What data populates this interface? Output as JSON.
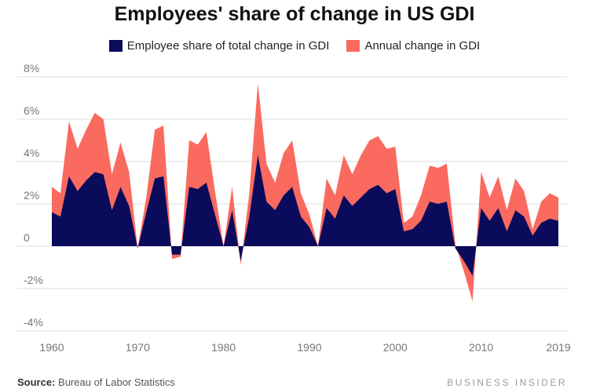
{
  "header": {
    "title": "Employees' share of change in US GDI"
  },
  "footer": {
    "source_label": "Source:",
    "source_text": "Bureau of Labor Statistics",
    "brand": "BUSINESS INSIDER"
  },
  "colors": {
    "employee_share": "#0b0b5c",
    "annual_change": "#fb6a5f",
    "grid": "#dddddd",
    "tick": "#777777"
  },
  "chart_data": {
    "type": "area",
    "title": "Employees' share of change in US GDI",
    "xlabel": "",
    "ylabel": "",
    "legend_position": "top",
    "grid": true,
    "stacked": "overlay",
    "x_ticks": [
      "1960",
      "1970",
      "1980",
      "1990",
      "2000",
      "2010",
      "2019"
    ],
    "y_ticks": [
      "8%",
      "6%",
      "4%",
      "2%",
      "0",
      "-2%",
      "-4%"
    ],
    "xlim": [
      1960,
      2019
    ],
    "ylim": [
      -4,
      8
    ],
    "x": [
      1960,
      1961,
      1962,
      1963,
      1964,
      1965,
      1966,
      1967,
      1968,
      1969,
      1970,
      1971,
      1972,
      1973,
      1974,
      1975,
      1976,
      1977,
      1978,
      1979,
      1980,
      1981,
      1982,
      1983,
      1984,
      1985,
      1986,
      1987,
      1988,
      1989,
      1990,
      1991,
      1992,
      1993,
      1994,
      1995,
      1996,
      1997,
      1998,
      1999,
      2000,
      2001,
      2002,
      2003,
      2004,
      2005,
      2006,
      2007,
      2008,
      2009,
      2010,
      2011,
      2012,
      2013,
      2014,
      2015,
      2016,
      2017,
      2018,
      2019
    ],
    "series": [
      {
        "name": "Employee share of total change in GDI",
        "values": [
          1.6,
          1.4,
          3.3,
          2.6,
          3.1,
          3.5,
          3.4,
          1.7,
          2.8,
          1.9,
          -0.1,
          1.6,
          3.2,
          3.3,
          -0.4,
          -0.4,
          2.8,
          2.7,
          3.0,
          1.5,
          0.0,
          1.7,
          -0.7,
          1.4,
          4.3,
          2.1,
          1.7,
          2.4,
          2.8,
          1.4,
          0.9,
          0.0,
          1.8,
          1.3,
          2.4,
          1.9,
          2.3,
          2.7,
          2.9,
          2.5,
          2.7,
          0.7,
          0.8,
          1.2,
          2.1,
          2.0,
          2.1,
          -0.1,
          -0.7,
          -1.4,
          1.8,
          1.2,
          1.8,
          0.7,
          1.7,
          1.4,
          0.5,
          1.1,
          1.3,
          1.2
        ]
      },
      {
        "name": "Annual change in GDI",
        "values": [
          2.8,
          2.5,
          5.9,
          4.6,
          5.5,
          6.3,
          6.0,
          3.4,
          4.9,
          3.5,
          -0.1,
          2.3,
          5.5,
          5.7,
          -0.6,
          -0.5,
          5.0,
          4.8,
          5.4,
          2.6,
          0.0,
          2.8,
          -0.9,
          2.5,
          7.7,
          3.9,
          3.0,
          4.4,
          5.0,
          2.5,
          1.5,
          0.0,
          3.2,
          2.4,
          4.3,
          3.4,
          4.3,
          5.0,
          5.2,
          4.6,
          4.7,
          1.1,
          1.4,
          2.4,
          3.8,
          3.7,
          3.9,
          0.1,
          -1.2,
          -2.6,
          3.5,
          2.3,
          3.3,
          1.7,
          3.2,
          2.6,
          0.8,
          2.1,
          2.5,
          2.3
        ]
      }
    ]
  }
}
